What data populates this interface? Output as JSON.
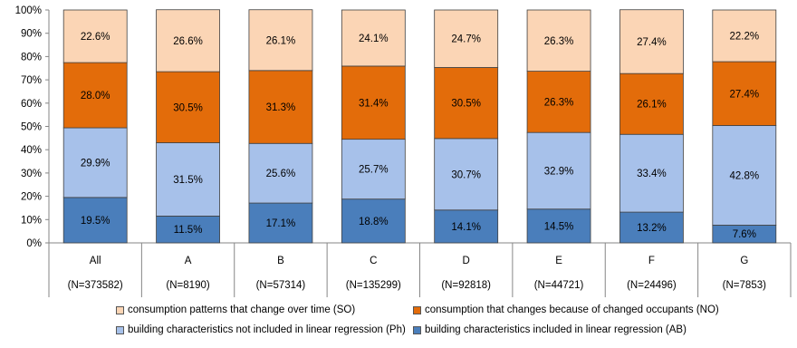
{
  "chart_data": {
    "type": "bar",
    "stacked": true,
    "normalized": true,
    "categories": [
      "All",
      "A",
      "B",
      "C",
      "D",
      "E",
      "F",
      "G"
    ],
    "category_sublabels": [
      "(N=373582)",
      "(N=8190)",
      "(N=57314)",
      "(N=135299)",
      "(N=92818)",
      "(N=44721)",
      "(N=24496)",
      "(N=7853)"
    ],
    "series": [
      {
        "name": "building characteristics included in linear regression (AB)",
        "color": "#4a7ebb",
        "values": [
          19.5,
          11.5,
          17.1,
          18.8,
          14.1,
          14.5,
          13.2,
          7.6
        ],
        "labels": [
          "19.5%",
          "11.5%",
          "17.1%",
          "18.8%",
          "14.1%",
          "14.5%",
          "13.2%",
          "7.6%"
        ]
      },
      {
        "name": "building characteristics not included in linear regression (Ph)",
        "color": "#a7c1ea",
        "values": [
          29.9,
          31.5,
          25.6,
          25.7,
          30.7,
          32.9,
          33.4,
          42.8
        ],
        "labels": [
          "29.9%",
          "31.5%",
          "25.6%",
          "25.7%",
          "30.7%",
          "32.9%",
          "33.4%",
          "42.8%"
        ]
      },
      {
        "name": "consumption that changes because of changed occupants (NO)",
        "color": "#e36c0a",
        "values": [
          28.0,
          30.5,
          31.3,
          31.4,
          30.5,
          26.3,
          26.1,
          27.4
        ],
        "labels": [
          "28.0%",
          "30.5%",
          "31.3%",
          "31.4%",
          "30.5%",
          "26.3%",
          "26.1%",
          "27.4%"
        ]
      },
      {
        "name": "consumption patterns that change over time (SO)",
        "color": "#fbd5b5",
        "values": [
          22.6,
          26.6,
          26.1,
          24.1,
          24.7,
          26.3,
          27.4,
          22.2
        ],
        "labels": [
          "22.6%",
          "26.6%",
          "26.1%",
          "24.1%",
          "24.7%",
          "26.3%",
          "27.4%",
          "22.2%"
        ]
      }
    ],
    "yticks": [
      "0%",
      "10%",
      "20%",
      "30%",
      "40%",
      "50%",
      "60%",
      "70%",
      "80%",
      "90%",
      "100%"
    ],
    "ylim": [
      0,
      100
    ],
    "grid": false,
    "legend_position": "bottom",
    "legend_order": [
      3,
      2,
      1,
      0
    ]
  }
}
